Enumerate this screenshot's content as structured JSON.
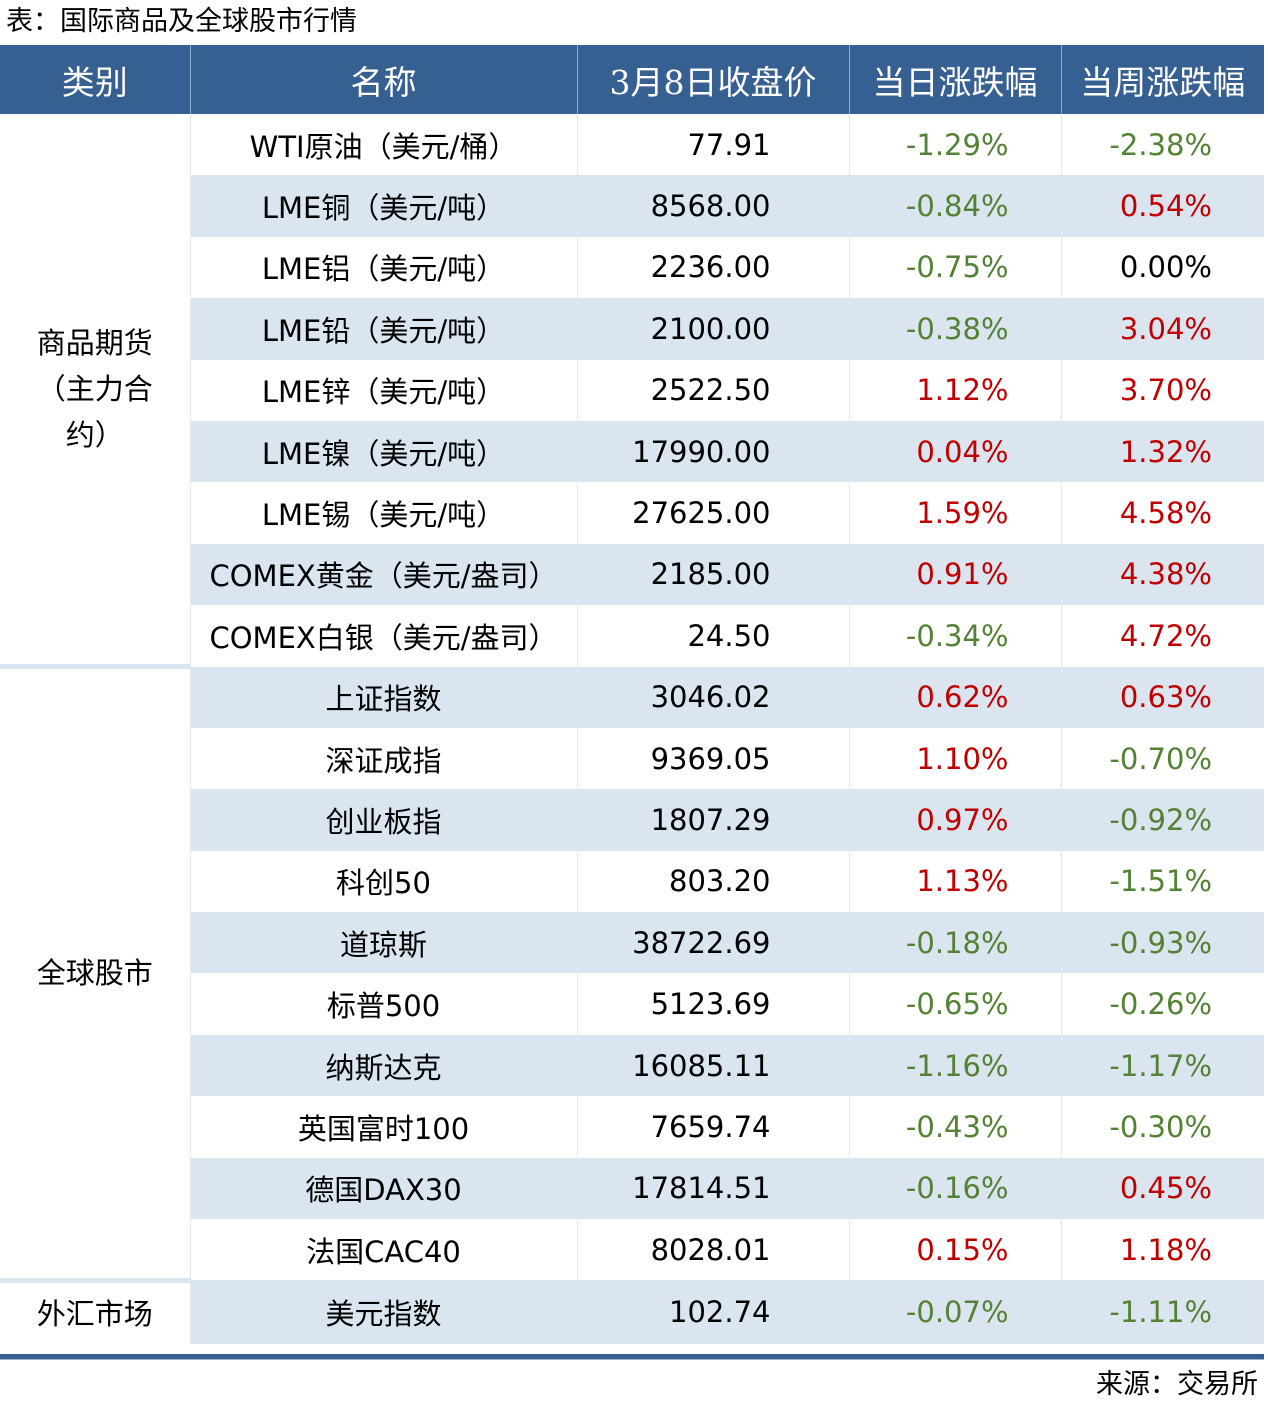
{
  "title": "表：国际商品及全球股市行情",
  "headers": [
    "类别",
    "名称",
    "3月8日收盘价",
    "当日涨跌幅",
    "当周涨跌幅"
  ],
  "colors": {
    "header_bg": "#366092",
    "stripe": "#dbe5f0",
    "up": "#c00000",
    "down": "#548235"
  },
  "groups": [
    {
      "category": "商品期货（主力合约）",
      "rows": [
        [
          "WTI原油（美元/桶）",
          "77.91",
          "-1.29%",
          "-2.38%"
        ],
        [
          "LME铜（美元/吨）",
          "8568.00",
          "-0.84%",
          "0.54%"
        ],
        [
          "LME铝（美元/吨）",
          "2236.00",
          "-0.75%",
          "0.00%"
        ],
        [
          "LME铅（美元/吨）",
          "2100.00",
          "-0.38%",
          "3.04%"
        ],
        [
          "LME锌（美元/吨）",
          "2522.50",
          "1.12%",
          "3.70%"
        ],
        [
          "LME镍（美元/吨）",
          "17990.00",
          "0.04%",
          "1.32%"
        ],
        [
          "LME锡（美元/吨）",
          "27625.00",
          "1.59%",
          "4.58%"
        ],
        [
          "COMEX黄金（美元/盎司）",
          "2185.00",
          "0.91%",
          "4.38%"
        ],
        [
          "COMEX白银（美元/盎司）",
          "24.50",
          "-0.34%",
          "4.72%"
        ]
      ]
    },
    {
      "category": "全球股市",
      "rows": [
        [
          "上证指数",
          "3046.02",
          "0.62%",
          "0.63%"
        ],
        [
          "深证成指",
          "9369.05",
          "1.10%",
          "-0.70%"
        ],
        [
          "创业板指",
          "1807.29",
          "0.97%",
          "-0.92%"
        ],
        [
          "科创50",
          "803.20",
          "1.13%",
          "-1.51%"
        ],
        [
          "道琼斯",
          "38722.69",
          "-0.18%",
          "-0.93%"
        ],
        [
          "标普500",
          "5123.69",
          "-0.65%",
          "-0.26%"
        ],
        [
          "纳斯达克",
          "16085.11",
          "-1.16%",
          "-1.17%"
        ],
        [
          "英国富时100",
          "7659.74",
          "-0.43%",
          "-0.30%"
        ],
        [
          "德国DAX30",
          "17814.51",
          "-0.16%",
          "0.45%"
        ],
        [
          "法国CAC40",
          "8028.01",
          "0.15%",
          "1.18%"
        ]
      ]
    },
    {
      "category": "外汇市场",
      "rows": [
        [
          "美元指数",
          "102.74",
          "-0.07%",
          "-1.11%"
        ]
      ]
    }
  ],
  "source": "来源：交易所"
}
